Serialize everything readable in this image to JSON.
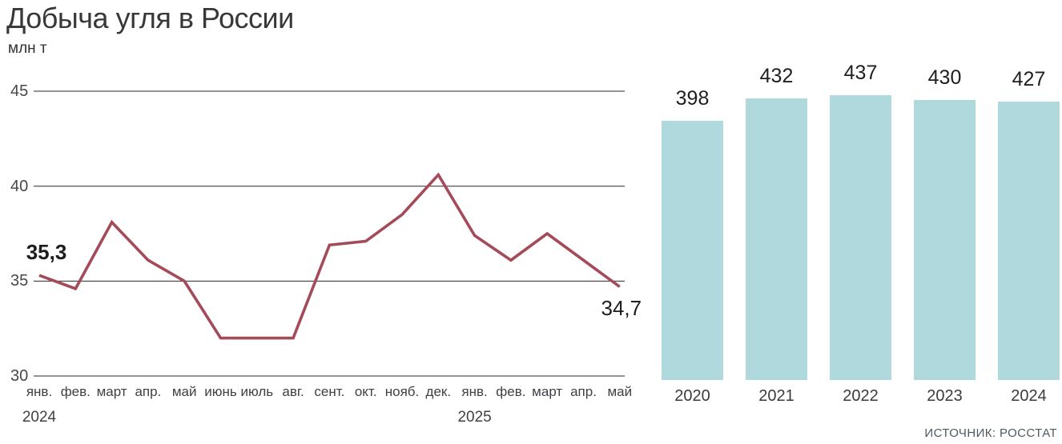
{
  "title": "Добыча угля в России",
  "unit_label": "млн т",
  "source": "ИСТОЧНИК: РОССТАТ",
  "colors": {
    "line": "#a44a58",
    "bar_fill": "#afd9dc",
    "gridline": "#2e2424",
    "axis_text": "#3f3f46",
    "value_text": "#1d1d1d"
  },
  "chart_data": [
    {
      "type": "line",
      "title": "Добыча угля в России — помесячно",
      "ylabel": "млн т",
      "x": [
        "янв.",
        "фев.",
        "март",
        "апр.",
        "май",
        "июнь",
        "июль",
        "авг.",
        "сент.",
        "окт.",
        "нояб.",
        "дек.",
        "янв.",
        "фев.",
        "март",
        "апр.",
        "май"
      ],
      "year_markers": [
        {
          "index": 0,
          "label": "2024"
        },
        {
          "index": 12,
          "label": "2025"
        }
      ],
      "values": [
        35.3,
        34.6,
        38.1,
        36.1,
        35.0,
        32.0,
        32.0,
        32.0,
        36.9,
        37.1,
        38.5,
        40.6,
        37.4,
        36.1,
        37.5,
        36.1,
        34.7
      ],
      "yticks": [
        45,
        40,
        35,
        30
      ],
      "ylim": [
        29,
        46
      ],
      "grid": true,
      "legend": "none",
      "annotations": [
        {
          "index": 0,
          "text": "35,3",
          "position": "above",
          "emphasis": "bold"
        },
        {
          "index": 16,
          "text": "34,7",
          "position": "below",
          "emphasis": "medium"
        }
      ]
    },
    {
      "type": "bar",
      "title": "Добыча угля в России — по годам",
      "categories": [
        "2020",
        "2021",
        "2022",
        "2023",
        "2024"
      ],
      "values": [
        398,
        432,
        437,
        430,
        427
      ],
      "data_labels": [
        "398",
        "432",
        "437",
        "430",
        "427"
      ]
    }
  ]
}
